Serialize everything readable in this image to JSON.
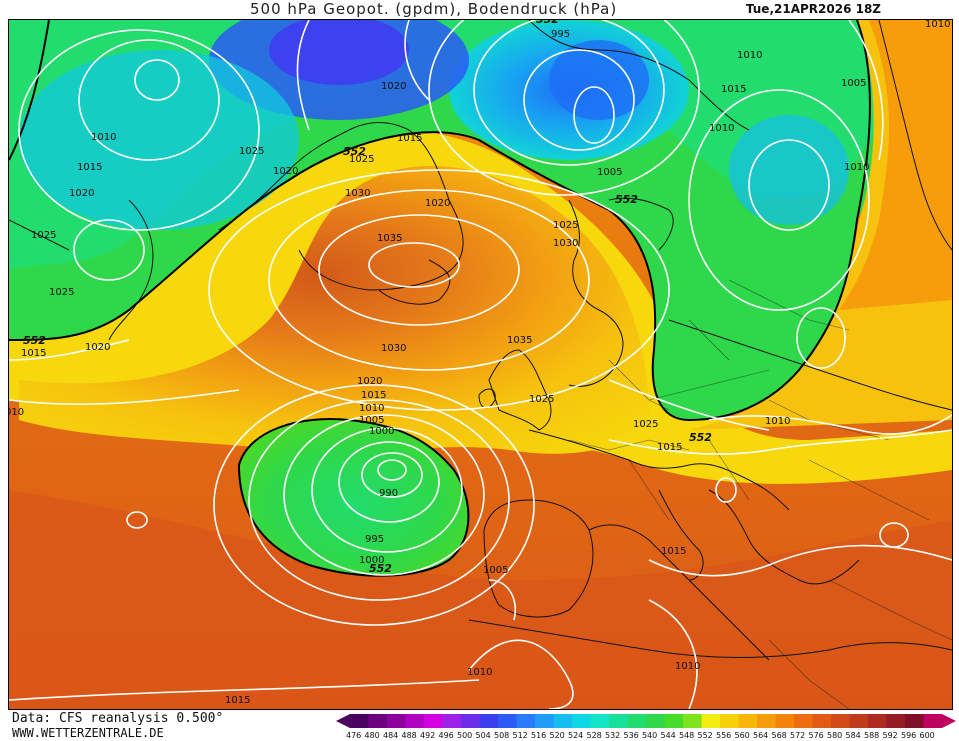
{
  "header": {
    "title": "500 hPa Geopot. (gpdm), Bodendruck (hPa)",
    "valid_time": "Tue,21APR2026 18Z"
  },
  "footer": {
    "data_source": "Data: CFS reanalysis 0.500°",
    "site": "WWW.WETTERZENTRALE.DE"
  },
  "colorbar": {
    "levels": [
      "476",
      "480",
      "484",
      "488",
      "492",
      "496",
      "500",
      "504",
      "508",
      "512",
      "516",
      "520",
      "524",
      "528",
      "532",
      "536",
      "540",
      "544",
      "548",
      "552",
      "556",
      "560",
      "564",
      "568",
      "572",
      "576",
      "580",
      "584",
      "588",
      "592",
      "596",
      "600"
    ],
    "colors": [
      "#4b0060",
      "#6c0080",
      "#8d009d",
      "#b000c0",
      "#d300e0",
      "#9b22e6",
      "#6d2ce8",
      "#3d3df0",
      "#2a5cf5",
      "#2a7bf7",
      "#1e9cf7",
      "#16bdf0",
      "#10d6e6",
      "#14e3c4",
      "#18e09a",
      "#22dc6e",
      "#2ed84a",
      "#46dc2a",
      "#7ee21c",
      "#f2ec10",
      "#f7d108",
      "#f8b60a",
      "#f79c0a",
      "#f4830c",
      "#ee6d10",
      "#e25a14",
      "#d24a18",
      "#c03a1c",
      "#ac2a20",
      "#961c24",
      "#801028",
      "#c00060"
    ]
  },
  "map": {
    "gpdm_contour": "552",
    "isobars": [
      "995",
      "1010",
      "1020",
      "1015",
      "1010",
      "1005",
      "1010",
      "1015",
      "1025",
      "1020",
      "1010",
      "1015",
      "1020",
      "1025",
      "1025",
      "1025",
      "1015",
      "1020",
      "1025",
      "1030",
      "1020",
      "1035",
      "1025",
      "1030",
      "1035",
      "1030",
      "1020",
      "1015",
      "1010",
      "1005",
      "1000",
      "990",
      "995",
      "1000",
      "1025",
      "1020",
      "1015",
      "1010",
      "1015",
      "1005",
      "1010",
      "1010",
      "1005",
      "1015",
      "1005",
      "1010",
      "1010"
    ],
    "gpdm_labels": [
      "552",
      "552",
      "552",
      "552",
      "552",
      "552"
    ],
    "edge_labels": [
      "1010",
      "010",
      "1015"
    ]
  }
}
